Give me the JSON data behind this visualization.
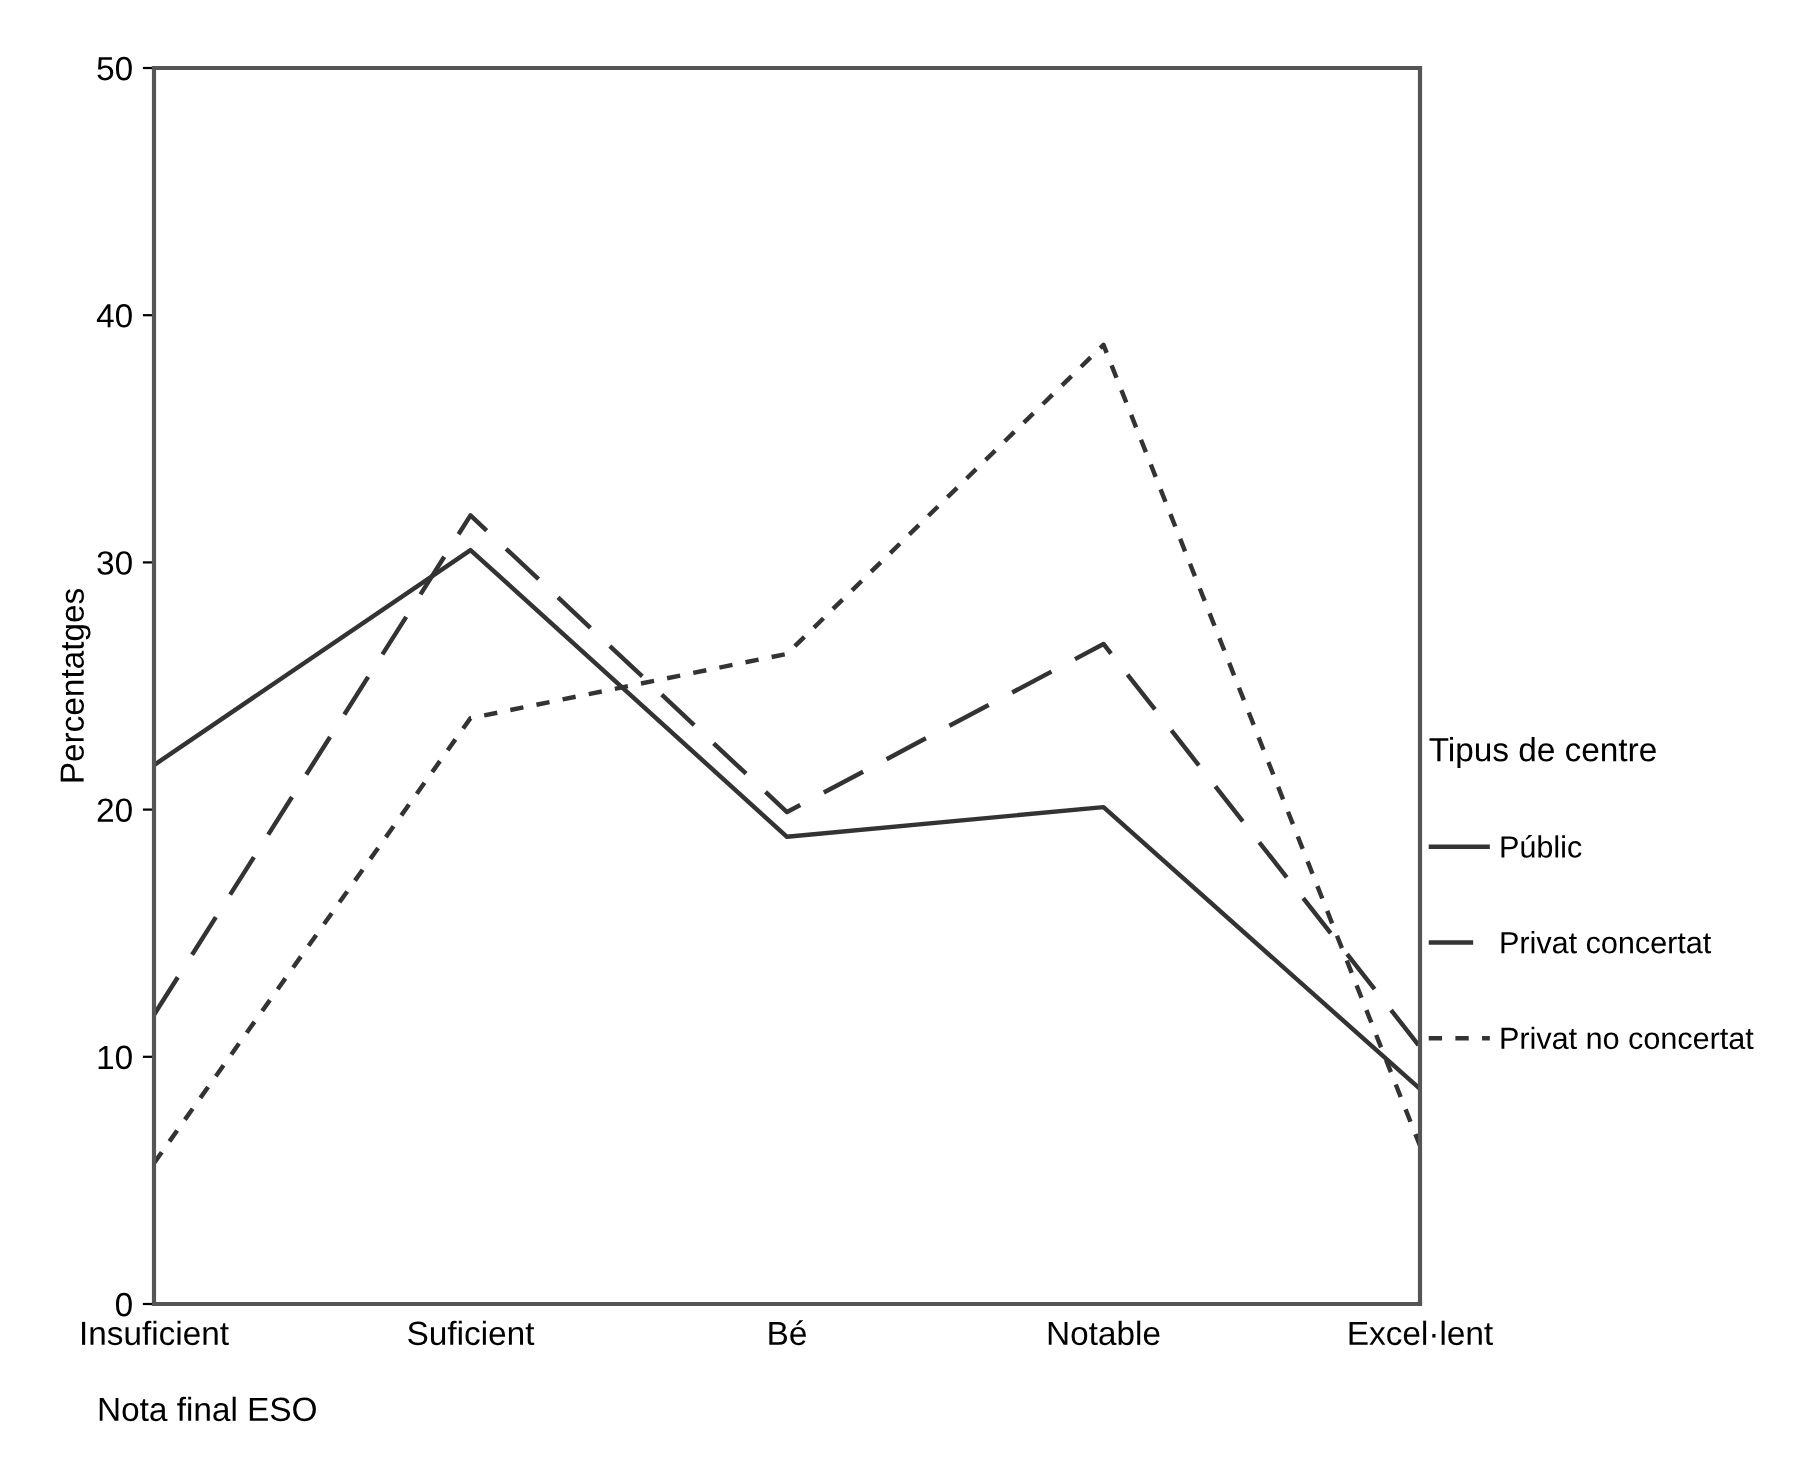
{
  "chart_data": {
    "type": "line",
    "xlabel": "Nota final ESO",
    "ylabel": "Percentatges",
    "legend_title": "Tipus de centre",
    "categories": [
      "Insuficient",
      "Suficient",
      "Bé",
      "Notable",
      "Excel·lent"
    ],
    "series": [
      {
        "name": "Públic",
        "color": "#333333",
        "line_style": "solid",
        "values": [
          21.8,
          30.5,
          18.9,
          20.1,
          8.7
        ]
      },
      {
        "name": "Privat concertat",
        "color": "#333333",
        "line_style": "dashed",
        "values": [
          11.7,
          31.9,
          19.9,
          26.7,
          10.4
        ]
      },
      {
        "name": "Privat no concertat",
        "color": "#333333",
        "line_style": "dotted",
        "values": [
          5.7,
          23.7,
          26.3,
          38.8,
          6.4
        ]
      }
    ],
    "ylim": [
      0,
      50
    ],
    "yticks": [
      0,
      10,
      20,
      30,
      40,
      50
    ],
    "grid": false,
    "legend": "right",
    "marker": "none"
  }
}
